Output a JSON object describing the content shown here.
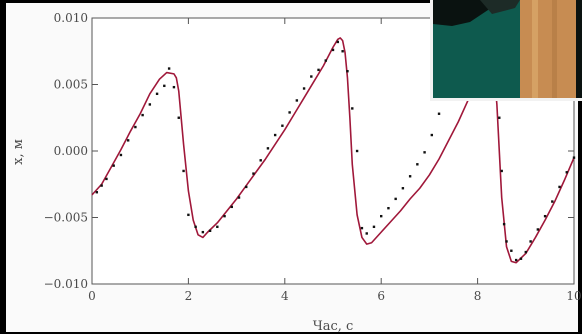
{
  "chart_data": {
    "type": "line",
    "title": "",
    "xlabel": "Час, с",
    "ylabel": "x, м",
    "xlim": [
      0,
      10
    ],
    "ylim": [
      -0.01,
      0.01
    ],
    "x_ticks": [
      0,
      2,
      4,
      6,
      8,
      10
    ],
    "x_tick_labels": [
      "0",
      "2",
      "4",
      "6",
      "8",
      "10"
    ],
    "y_ticks": [
      -0.01,
      -0.005,
      0.0,
      0.005,
      0.01
    ],
    "y_tick_labels": [
      "−0.010",
      "−0.005",
      "0.000",
      "0.005",
      "0.010"
    ],
    "grid": false,
    "series": [
      {
        "kind": "line",
        "color": "#a0183a",
        "x": [
          0,
          0.2,
          0.4,
          0.6,
          0.8,
          1.0,
          1.2,
          1.4,
          1.55,
          1.7,
          1.75,
          1.8,
          1.85,
          1.9,
          2.0,
          2.1,
          2.2,
          2.3,
          2.4,
          2.6,
          2.8,
          3.0,
          3.2,
          3.4,
          3.6,
          3.8,
          4.0,
          4.2,
          4.4,
          4.6,
          4.8,
          5.0,
          5.1,
          5.15,
          5.2,
          5.25,
          5.3,
          5.35,
          5.4,
          5.5,
          5.6,
          5.7,
          5.8,
          6.0,
          6.2,
          6.4,
          6.6,
          6.8,
          7.0,
          7.2,
          7.4,
          7.6,
          7.8,
          8.0,
          8.2,
          8.3,
          8.35,
          8.4,
          8.5,
          8.6,
          8.7,
          8.8,
          9.0,
          9.2,
          9.4,
          9.6,
          9.8,
          10.0
        ],
        "y": [
          -0.0033,
          -0.0025,
          -0.0012,
          0.0001,
          0.0015,
          0.0028,
          0.0043,
          0.0054,
          0.0059,
          0.0058,
          0.0055,
          0.0045,
          0.0025,
          0.0005,
          -0.003,
          -0.0052,
          -0.0063,
          -0.0065,
          -0.0061,
          -0.0054,
          -0.0045,
          -0.0036,
          -0.0026,
          -0.0016,
          -0.0006,
          0.0005,
          0.0016,
          0.0028,
          0.004,
          0.0052,
          0.0064,
          0.0078,
          0.0084,
          0.0085,
          0.0083,
          0.0074,
          0.0055,
          0.0025,
          -0.001,
          -0.0048,
          -0.0065,
          -0.007,
          -0.0069,
          -0.0061,
          -0.0053,
          -0.0045,
          -0.0036,
          -0.0028,
          -0.0018,
          -0.0006,
          0.0008,
          0.0022,
          0.0038,
          0.005,
          0.0058,
          0.0059,
          0.0056,
          0.0035,
          -0.0035,
          -0.0072,
          -0.0083,
          -0.0084,
          -0.0077,
          -0.0065,
          -0.0052,
          -0.0038,
          -0.0022,
          -0.0005
        ]
      },
      {
        "kind": "scatter",
        "color": "#111111",
        "x": [
          0.1,
          0.2,
          0.3,
          0.45,
          0.6,
          0.75,
          0.9,
          1.05,
          1.2,
          1.35,
          1.5,
          1.6,
          1.7,
          1.8,
          1.9,
          2.0,
          2.15,
          2.3,
          2.45,
          2.6,
          2.75,
          2.9,
          3.05,
          3.2,
          3.35,
          3.5,
          3.65,
          3.8,
          3.95,
          4.1,
          4.25,
          4.4,
          4.55,
          4.7,
          4.85,
          5.0,
          5.1,
          5.2,
          5.3,
          5.4,
          5.5,
          5.6,
          5.7,
          5.85,
          6.0,
          6.15,
          6.3,
          6.45,
          6.6,
          6.75,
          6.9,
          7.05,
          7.2,
          8.45,
          8.5,
          8.55,
          8.6,
          8.7,
          8.8,
          8.9,
          9.0,
          9.1,
          9.25,
          9.4,
          9.55,
          9.7,
          9.85,
          10.0
        ],
        "y": [
          -0.0031,
          -0.0026,
          -0.0021,
          -0.0011,
          -0.0003,
          0.0008,
          0.0018,
          0.0027,
          0.0035,
          0.0043,
          0.0049,
          0.0062,
          0.0048,
          0.0025,
          -0.0015,
          -0.0048,
          -0.0057,
          -0.0061,
          -0.006,
          -0.0057,
          -0.0049,
          -0.0042,
          -0.0035,
          -0.0027,
          -0.0017,
          -0.0007,
          0.0002,
          0.0012,
          0.0019,
          0.0029,
          0.0038,
          0.0047,
          0.0056,
          0.0061,
          0.0068,
          0.0076,
          0.0082,
          0.0075,
          0.006,
          0.0032,
          0.0,
          -0.0058,
          -0.0062,
          -0.0057,
          -0.0049,
          -0.0043,
          -0.0036,
          -0.0028,
          -0.0019,
          -0.001,
          -0.0001,
          0.0012,
          0.0028,
          0.0025,
          -0.0015,
          -0.0055,
          -0.0068,
          -0.0075,
          -0.0082,
          -0.0081,
          -0.0076,
          -0.0068,
          -0.0059,
          -0.0049,
          -0.0038,
          -0.0027,
          -0.0016,
          -0.0005
        ]
      }
    ]
  },
  "photo_inset": {
    "colors": {
      "teal": "#0e5a4e",
      "dark": "#0a1210",
      "wood": "#c78c52",
      "wood_light": "#dba96c",
      "frame": "#f2f2f2"
    }
  }
}
